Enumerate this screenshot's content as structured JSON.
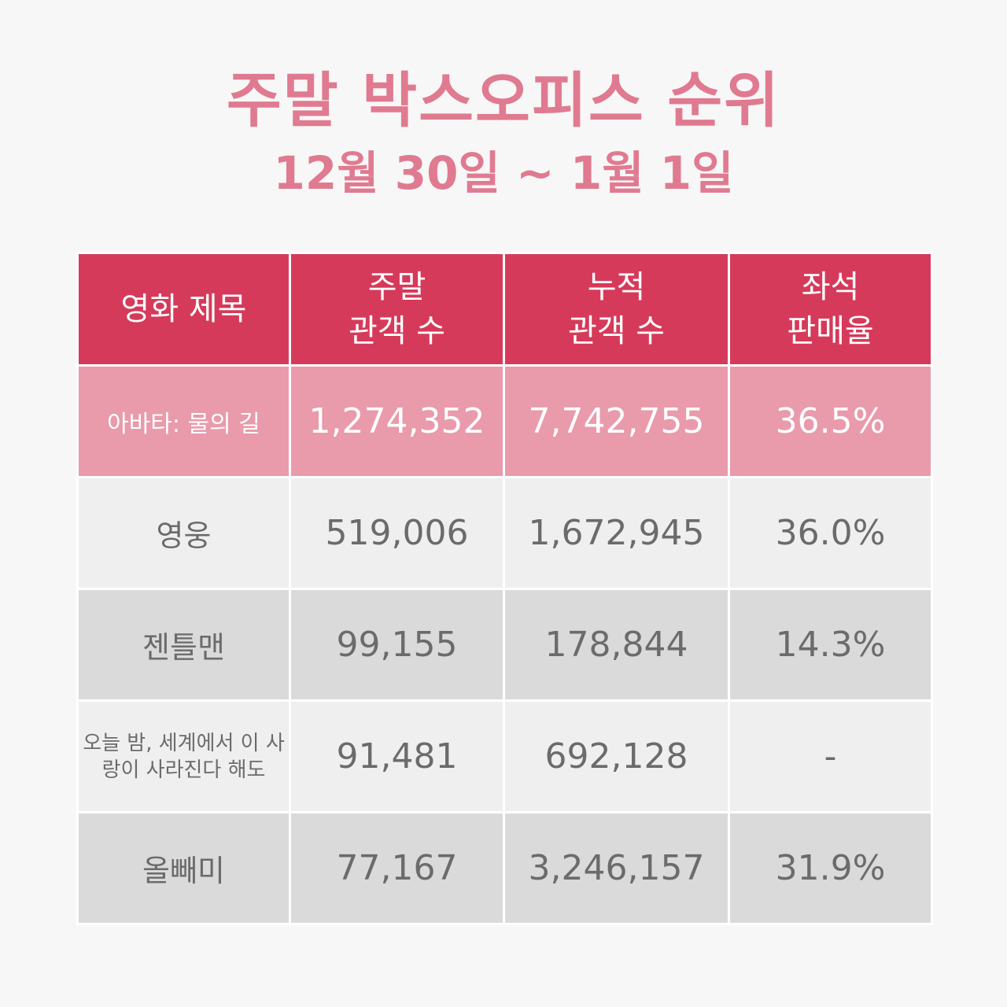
{
  "title": "주말 박스오피스 순위",
  "subtitle": "12월 30일 ~ 1월 1일",
  "colors": {
    "accent": "#d63a5a",
    "title": "#e07a90",
    "highlight_row": "#e99aab",
    "row_light": "#efefef",
    "row_dark": "#dadada"
  },
  "chart_data": {
    "type": "table",
    "columns": [
      {
        "line1": "영화 제목",
        "line2": ""
      },
      {
        "line1": "주말",
        "line2": "관객 수"
      },
      {
        "line1": "누적",
        "line2": "관객 수"
      },
      {
        "line1": "좌석",
        "line2": "판매율"
      }
    ],
    "rows": [
      {
        "movie": "아바타: 물의 길",
        "weekend": "1,274,352",
        "total": "7,742,755",
        "seat_rate": "36.5%"
      },
      {
        "movie": "영웅",
        "weekend": "519,006",
        "total": "1,672,945",
        "seat_rate": "36.0%"
      },
      {
        "movie": "젠틀맨",
        "weekend": "99,155",
        "total": "178,844",
        "seat_rate": "14.3%"
      },
      {
        "movie": "오늘 밤, 세계에서 이 사랑이 사라진다 해도",
        "weekend": "91,481",
        "total": "692,128",
        "seat_rate": "-"
      },
      {
        "movie": "올빼미",
        "weekend": "77,167",
        "total": "3,246,157",
        "seat_rate": "31.9%"
      }
    ]
  }
}
